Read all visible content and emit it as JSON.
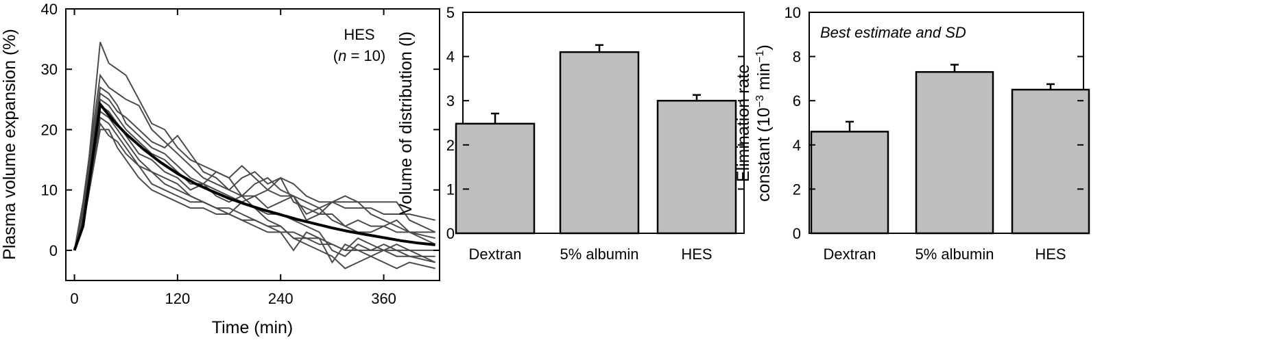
{
  "colors": {
    "bar_fill": "#bebebe",
    "individual_line": "#4a4a4a",
    "fit_line": "#000000"
  },
  "chart_data": [
    {
      "type": "line",
      "xlabel": "Time (min)",
      "ylabel": "Plasma volume expansion (%)",
      "xlim": [
        -10,
        425
      ],
      "ylim": [
        -5,
        40
      ],
      "xticks": [
        0,
        120,
        240,
        360
      ],
      "yticks": [
        0,
        10,
        20,
        30,
        40
      ],
      "annotation": {
        "group": "HES",
        "n_prefix": "(",
        "n_symbol": "n",
        "n_rest": " = 10)"
      },
      "x": [
        0,
        10,
        30,
        40,
        50,
        60,
        75,
        90,
        105,
        120,
        135,
        150,
        165,
        180,
        195,
        210,
        225,
        240,
        255,
        270,
        285,
        300,
        315,
        330,
        345,
        360,
        375,
        390,
        420
      ],
      "series": [
        {
          "values": [
            0,
            5,
            34.5,
            31,
            30,
            29,
            25,
            21,
            20,
            17,
            15,
            14,
            13,
            12,
            14,
            12,
            10,
            9,
            9,
            8,
            7,
            8,
            7,
            7,
            7,
            6,
            6,
            6,
            5
          ]
        },
        {
          "values": [
            0,
            8,
            29,
            27,
            26,
            25,
            24,
            20,
            18,
            16,
            14,
            12,
            11,
            10,
            12,
            13,
            11,
            12,
            8,
            7,
            6,
            6,
            4,
            5,
            4,
            4,
            3,
            3,
            3
          ]
        },
        {
          "values": [
            0,
            6,
            26,
            25,
            23,
            22,
            20,
            18,
            17,
            19,
            16,
            13,
            12,
            10,
            9,
            11,
            12,
            10,
            9,
            6,
            7,
            5,
            4,
            3,
            3,
            4,
            5,
            3,
            2
          ]
        },
        {
          "values": [
            0,
            7,
            27,
            26,
            24,
            21,
            19,
            17,
            16,
            14,
            12,
            11,
            13,
            12,
            9,
            9,
            7,
            8,
            9,
            5,
            6,
            8,
            9,
            8,
            6,
            5,
            4,
            3,
            1
          ]
        },
        {
          "values": [
            0,
            5,
            25,
            24,
            22,
            20,
            18,
            16,
            15,
            13,
            11,
            11,
            10,
            9,
            8,
            9,
            10,
            12,
            11,
            9,
            8,
            8,
            8,
            8,
            8,
            8,
            8,
            5,
            3
          ]
        },
        {
          "values": [
            0,
            6,
            24,
            23,
            21,
            19,
            16,
            15,
            13,
            12,
            10,
            11,
            9,
            8,
            9,
            7,
            6,
            6,
            5,
            4,
            3,
            0,
            -1,
            1,
            0,
            0,
            1,
            0,
            -2
          ]
        },
        {
          "values": [
            0,
            5,
            23,
            22,
            20,
            18,
            15,
            13,
            12,
            11,
            9,
            8,
            7,
            6,
            8,
            7,
            5,
            4,
            2,
            1,
            0,
            -1,
            -3,
            -2,
            -1,
            -2,
            -3,
            -2,
            -3
          ]
        },
        {
          "values": [
            0,
            6,
            22,
            21,
            19,
            17,
            14,
            11,
            10,
            9,
            8,
            8,
            7,
            6,
            5,
            5,
            4,
            3,
            0,
            3,
            2,
            -2,
            1,
            0,
            -1,
            0,
            -1,
            -1,
            -2
          ]
        },
        {
          "values": [
            0,
            4,
            20,
            20,
            17,
            15,
            12,
            10,
            9,
            8,
            7,
            7,
            6,
            6,
            5,
            4,
            3,
            3,
            3,
            2,
            2,
            1,
            0,
            2,
            1,
            0,
            0,
            -1,
            -1
          ]
        },
        {
          "values": [
            0,
            5,
            21,
            19,
            18,
            16,
            14,
            13,
            11,
            10,
            9,
            8,
            7,
            7,
            6,
            5,
            4,
            4,
            2,
            2,
            1,
            1,
            0,
            0,
            0,
            1,
            0,
            0,
            0
          ]
        }
      ],
      "fit": {
        "x": [
          0,
          10,
          30,
          45,
          60,
          80,
          100,
          120,
          140,
          160,
          180,
          200,
          220,
          240,
          260,
          280,
          300,
          320,
          340,
          360,
          380,
          400,
          420
        ],
        "values": [
          0,
          4,
          24.2,
          21.5,
          19.3,
          16.8,
          14.6,
          12.7,
          11.1,
          9.8,
          8.6,
          7.6,
          6.7,
          5.9,
          5.1,
          4.4,
          3.7,
          3.1,
          2.6,
          2.1,
          1.6,
          1.2,
          0.9
        ]
      }
    },
    {
      "type": "bar",
      "categories": [
        "Dextran",
        "5% albumin",
        "HES"
      ],
      "values": [
        2.48,
        4.1,
        3.0
      ],
      "errors": [
        0.23,
        0.16,
        0.13
      ],
      "xlabel": "",
      "ylabel": "Volume of distribution (l)",
      "ylim": [
        0,
        5
      ],
      "yticks": [
        0,
        1,
        2,
        3,
        4,
        5
      ]
    },
    {
      "type": "bar",
      "categories": [
        "Dextran",
        "5% albumin",
        "HES"
      ],
      "values": [
        4.6,
        7.3,
        6.5
      ],
      "errors": [
        0.45,
        0.33,
        0.25
      ],
      "xlabel": "",
      "ylabel_line1": "Elimination rate",
      "ylabel_line2_prefix": "constant (10",
      "ylabel_line2_exp1": "−3",
      "ylabel_line2_mid": " min",
      "ylabel_line2_exp2": "−1",
      "ylabel_line2_suffix": ")",
      "ylim": [
        0,
        10
      ],
      "yticks": [
        0,
        2,
        4,
        6,
        8,
        10
      ],
      "annotation": "Best estimate and SD"
    }
  ]
}
